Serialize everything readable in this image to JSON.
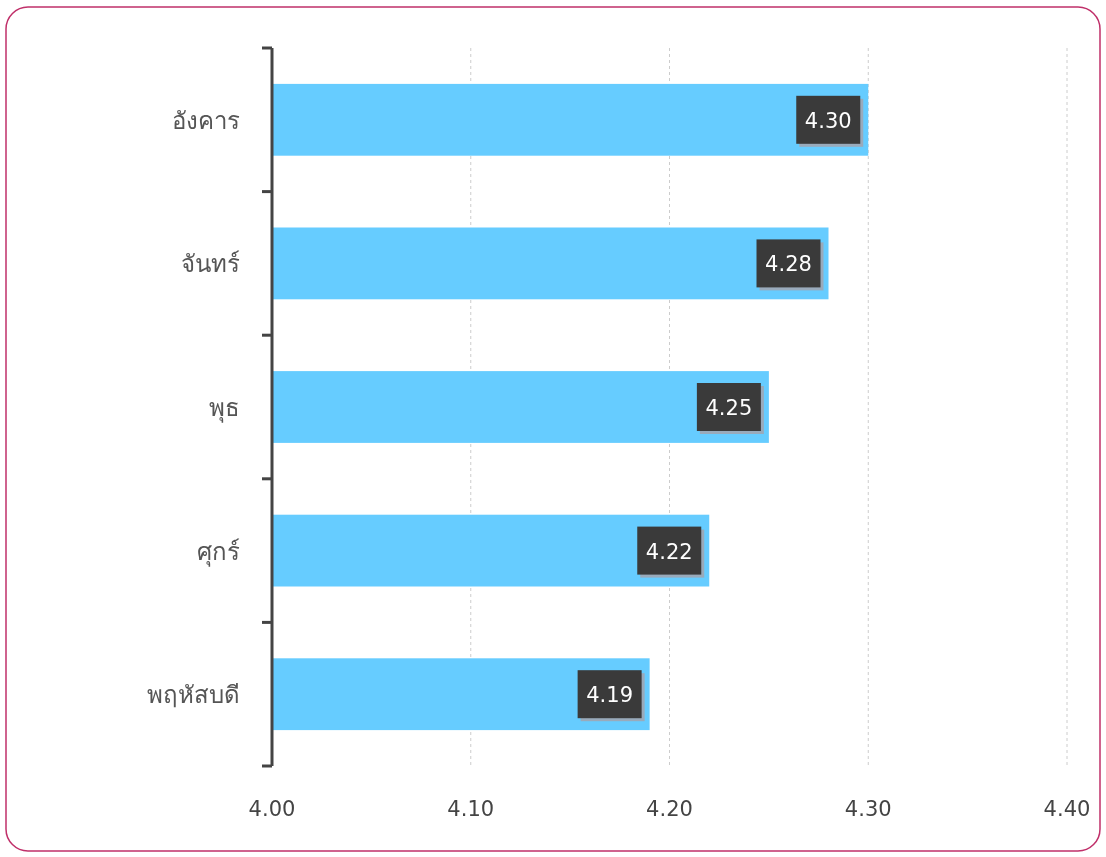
{
  "chart_data": {
    "type": "bar",
    "orientation": "horizontal",
    "categories": [
      "อังคาร",
      "จันทร์",
      "พุธ",
      "ศุกร์",
      "พฤหัสบดี"
    ],
    "values": [
      4.3,
      4.28,
      4.25,
      4.22,
      4.19
    ],
    "value_labels": [
      "4.30",
      "4.28",
      "4.25",
      "4.22",
      "4.19"
    ],
    "color": "#66ccff",
    "xlim": [
      4.0,
      4.4
    ],
    "xticks": [
      {
        "value": 4.0,
        "label": "4.00"
      },
      {
        "value": 4.1,
        "label": "4.10"
      },
      {
        "value": 4.2,
        "label": "4.20"
      },
      {
        "value": 4.3,
        "label": "4.30"
      },
      {
        "value": 4.4,
        "label": "4.40"
      }
    ],
    "grid": "x"
  }
}
